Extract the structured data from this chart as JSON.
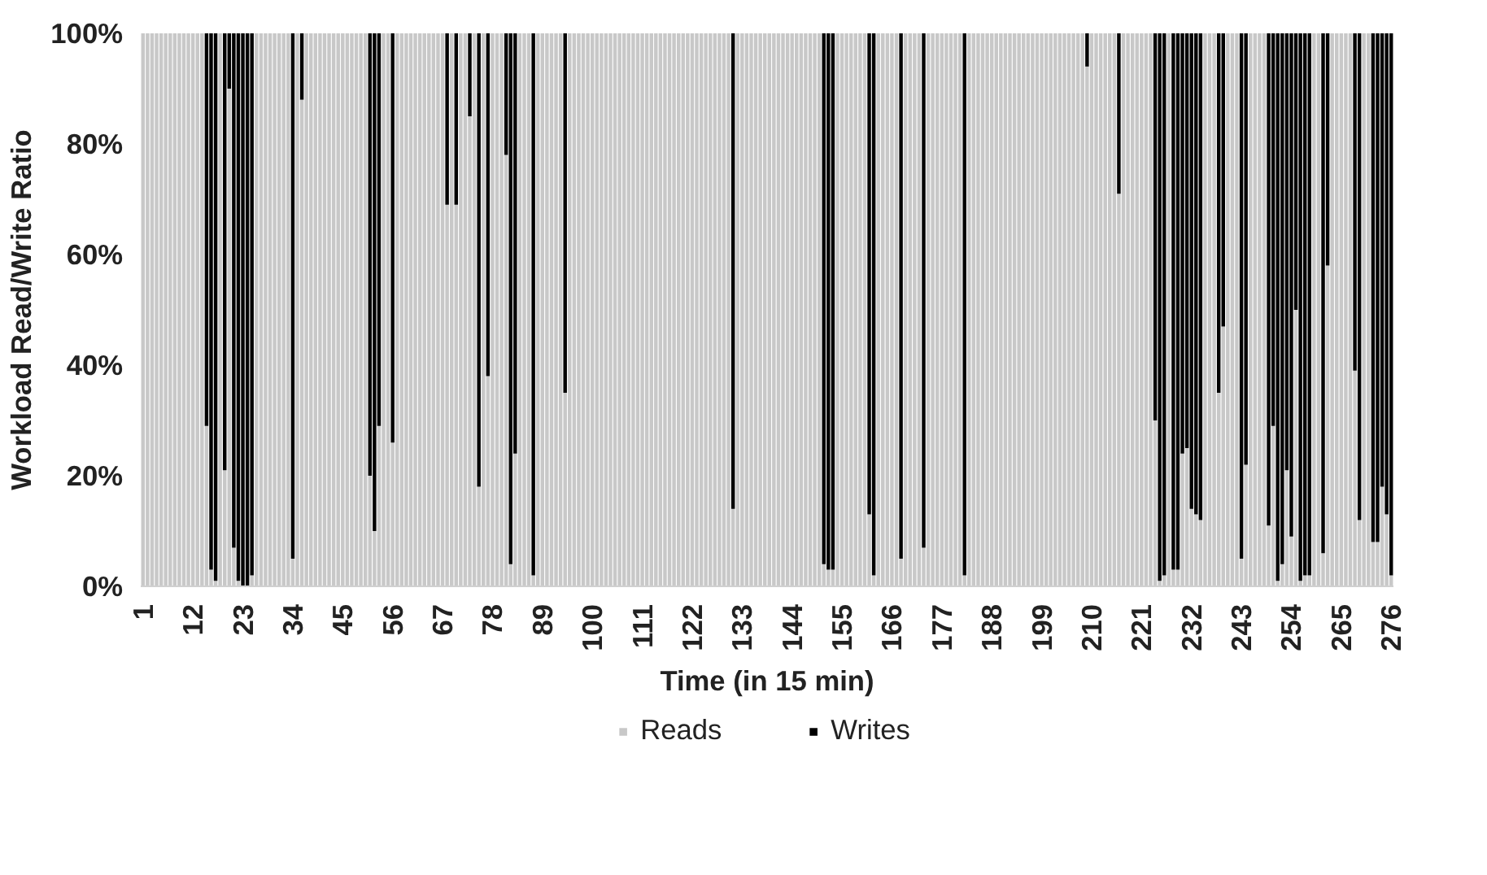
{
  "chart_data": {
    "type": "bar",
    "stacked": true,
    "xlabel": "Time (in 15 min)",
    "ylabel": "Workload Read/Write Ratio",
    "categories": [
      "1",
      null,
      null,
      null,
      null,
      null,
      null,
      null,
      null,
      null,
      null,
      "12",
      null,
      null,
      null,
      null,
      null,
      null,
      null,
      null,
      null,
      null,
      "23",
      null,
      null,
      null,
      null,
      null,
      null,
      null,
      null,
      null,
      null,
      "34",
      null,
      null,
      null,
      null,
      null,
      null,
      null,
      null,
      null,
      null,
      "45",
      null,
      null,
      null,
      null,
      null,
      null,
      null,
      null,
      null,
      null,
      "56",
      null,
      null,
      null,
      null,
      null,
      null,
      null,
      null,
      null,
      null,
      "67",
      null,
      null,
      null,
      null,
      null,
      null,
      null,
      null,
      null,
      null,
      "78",
      null,
      null,
      null,
      null,
      null,
      null,
      null,
      null,
      null,
      null,
      "89",
      null,
      null,
      null,
      null,
      null,
      null,
      null,
      null,
      null,
      null,
      "100",
      null,
      null,
      null,
      null,
      null,
      null,
      null,
      null,
      null,
      null,
      "111",
      null,
      null,
      null,
      null,
      null,
      null,
      null,
      null,
      null,
      null,
      "122",
      null,
      null,
      null,
      null,
      null,
      null,
      null,
      null,
      null,
      null,
      "133",
      null,
      null,
      null,
      null,
      null,
      null,
      null,
      null,
      null,
      null,
      "144",
      null,
      null,
      null,
      null,
      null,
      null,
      null,
      null,
      null,
      null,
      "155",
      null,
      null,
      null,
      null,
      null,
      null,
      null,
      null,
      null,
      null,
      "166",
      null,
      null,
      null,
      null,
      null,
      null,
      null,
      null,
      null,
      null,
      "177",
      null,
      null,
      null,
      null,
      null,
      null,
      null,
      null,
      null,
      null,
      "188",
      null,
      null,
      null,
      null,
      null,
      null,
      null,
      null,
      null,
      null,
      "199",
      null,
      null,
      null,
      null,
      null,
      null,
      null,
      null,
      null,
      null,
      "210",
      null,
      null,
      null,
      null,
      null,
      null,
      null,
      null,
      null,
      null,
      "221",
      null,
      null,
      null,
      null,
      null,
      null,
      null,
      null,
      null,
      null,
      "232",
      null,
      null,
      null,
      null,
      null,
      null,
      null,
      null,
      null,
      null,
      "243",
      null,
      null,
      null,
      null,
      null,
      null,
      null,
      null,
      null,
      null,
      "254",
      null,
      null,
      null,
      null,
      null,
      null,
      null,
      null,
      null,
      null,
      "265",
      null,
      null,
      null,
      null,
      null,
      null,
      null,
      null,
      null,
      null,
      "276"
    ],
    "series": [
      {
        "name": "Reads",
        "color": "#c8c8c8",
        "values": [
          100,
          100,
          100,
          100,
          100,
          100,
          100,
          100,
          100,
          100,
          100,
          100,
          100,
          100,
          29,
          3,
          1,
          100,
          21,
          90,
          7,
          1,
          0,
          0,
          2,
          100,
          100,
          100,
          100,
          100,
          100,
          100,
          100,
          5,
          100,
          88,
          100,
          100,
          100,
          100,
          100,
          100,
          100,
          100,
          100,
          100,
          100,
          100,
          100,
          100,
          20,
          10,
          29,
          100,
          100,
          26,
          100,
          100,
          100,
          100,
          100,
          100,
          100,
          100,
          100,
          100,
          100,
          69,
          100,
          69,
          100,
          100,
          85,
          100,
          18,
          100,
          38,
          100,
          100,
          100,
          78,
          4,
          24,
          100,
          100,
          100,
          2,
          100,
          100,
          100,
          100,
          100,
          100,
          35,
          100,
          100,
          100,
          100,
          100,
          100,
          100,
          100,
          100,
          100,
          100,
          100,
          100,
          100,
          100,
          100,
          100,
          100,
          100,
          100,
          100,
          100,
          100,
          100,
          100,
          100,
          100,
          100,
          100,
          100,
          100,
          100,
          100,
          100,
          100,
          100,
          14,
          100,
          100,
          100,
          100,
          100,
          100,
          100,
          100,
          100,
          100,
          100,
          100,
          100,
          100,
          100,
          100,
          100,
          100,
          100,
          4,
          3,
          3,
          100,
          100,
          100,
          100,
          100,
          100,
          100,
          13,
          2,
          100,
          100,
          100,
          100,
          100,
          5,
          100,
          100,
          100,
          100,
          7,
          100,
          100,
          100,
          100,
          100,
          100,
          100,
          100,
          2,
          100,
          100,
          100,
          100,
          100,
          100,
          100,
          100,
          100,
          100,
          100,
          100,
          100,
          100,
          100,
          100,
          100,
          100,
          100,
          100,
          100,
          100,
          100,
          100,
          100,
          100,
          94,
          100,
          100,
          100,
          100,
          100,
          100,
          71,
          100,
          100,
          100,
          100,
          100,
          100,
          100,
          30,
          1,
          2,
          100,
          3,
          3,
          24,
          25,
          14,
          13,
          12,
          100,
          100,
          100,
          35,
          47,
          100,
          100,
          100,
          5,
          22,
          100,
          100,
          100,
          100,
          11,
          29,
          1,
          4,
          21,
          9,
          50,
          1,
          2,
          2,
          100,
          100,
          6,
          58,
          100,
          100,
          100,
          100,
          100,
          39,
          12,
          100,
          100,
          8,
          8,
          18,
          13,
          2
        ]
      },
      {
        "name": "Writes",
        "color": "#000000",
        "values": [
          0,
          0,
          0,
          0,
          0,
          0,
          0,
          0,
          0,
          0,
          0,
          0,
          0,
          0,
          71,
          97,
          99,
          0,
          79,
          10,
          93,
          99,
          100,
          100,
          98,
          0,
          0,
          0,
          0,
          0,
          0,
          0,
          0,
          95,
          0,
          12,
          0,
          0,
          0,
          0,
          0,
          0,
          0,
          0,
          0,
          0,
          0,
          0,
          0,
          0,
          80,
          90,
          71,
          0,
          0,
          74,
          0,
          0,
          0,
          0,
          0,
          0,
          0,
          0,
          0,
          0,
          0,
          31,
          0,
          31,
          0,
          0,
          15,
          0,
          82,
          0,
          62,
          0,
          0,
          0,
          22,
          96,
          76,
          0,
          0,
          0,
          98,
          0,
          0,
          0,
          0,
          0,
          0,
          65,
          0,
          0,
          0,
          0,
          0,
          0,
          0,
          0,
          0,
          0,
          0,
          0,
          0,
          0,
          0,
          0,
          0,
          0,
          0,
          0,
          0,
          0,
          0,
          0,
          0,
          0,
          0,
          0,
          0,
          0,
          0,
          0,
          0,
          0,
          0,
          0,
          86,
          0,
          0,
          0,
          0,
          0,
          0,
          0,
          0,
          0,
          0,
          0,
          0,
          0,
          0,
          0,
          0,
          0,
          0,
          0,
          96,
          97,
          97,
          0,
          0,
          0,
          0,
          0,
          0,
          0,
          87,
          98,
          0,
          0,
          0,
          0,
          0,
          95,
          0,
          0,
          0,
          0,
          93,
          0,
          0,
          0,
          0,
          0,
          0,
          0,
          0,
          98,
          0,
          0,
          0,
          0,
          0,
          0,
          0,
          0,
          0,
          0,
          0,
          0,
          0,
          0,
          0,
          0,
          0,
          0,
          0,
          0,
          0,
          0,
          0,
          0,
          0,
          0,
          6,
          0,
          0,
          0,
          0,
          0,
          0,
          29,
          0,
          0,
          0,
          0,
          0,
          0,
          0,
          70,
          99,
          98,
          0,
          97,
          97,
          76,
          75,
          86,
          87,
          88,
          0,
          0,
          0,
          65,
          53,
          0,
          0,
          0,
          95,
          78,
          0,
          0,
          0,
          0,
          89,
          71,
          99,
          96,
          79,
          91,
          50,
          99,
          98,
          98,
          0,
          0,
          94,
          42,
          0,
          0,
          0,
          0,
          0,
          61,
          88,
          0,
          0,
          92,
          92,
          82,
          87,
          98
        ]
      }
    ],
    "ylim": [
      0,
      100
    ],
    "yticks": [
      {
        "value": 0,
        "label": "0%"
      },
      {
        "value": 20,
        "label": "20%"
      },
      {
        "value": 40,
        "label": "40%"
      },
      {
        "value": 60,
        "label": "60%"
      },
      {
        "value": 80,
        "label": "80%"
      },
      {
        "value": 100,
        "label": "100%"
      }
    ],
    "legend": "bottom"
  }
}
